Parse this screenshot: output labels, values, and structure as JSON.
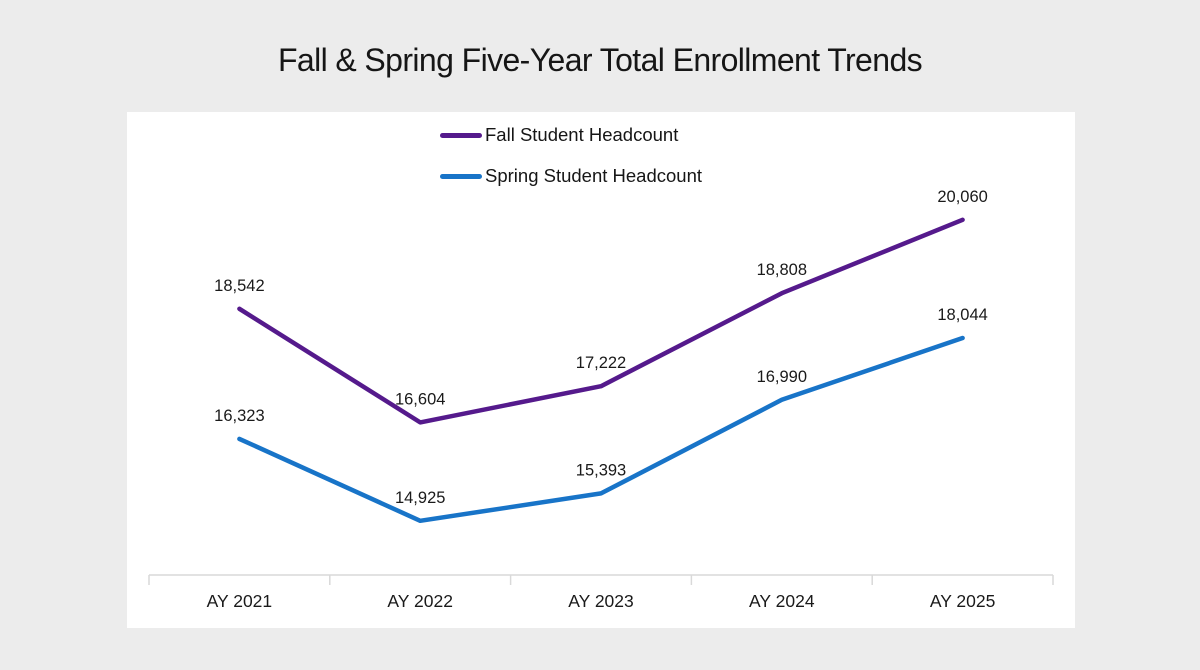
{
  "page": {
    "background_color": "#ececec",
    "panel_color": "#ffffff"
  },
  "chart_data": {
    "type": "line",
    "title": "Fall & Spring Five-Year Total Enrollment Trends",
    "categories": [
      "AY 2021",
      "AY 2022",
      "AY 2023",
      "AY 2024",
      "AY 2025"
    ],
    "series": [
      {
        "name": "Fall Student Headcount",
        "color": "#551a8c",
        "values": [
          18542,
          16604,
          17222,
          18808,
          20060
        ],
        "labels": [
          "18,542",
          "16,604",
          "17,222",
          "18,808",
          "20,060"
        ]
      },
      {
        "name": "Spring Student Headcount",
        "color": "#1874c8",
        "values": [
          16323,
          14925,
          15393,
          16990,
          18044
        ],
        "labels": [
          "16,323",
          "14,925",
          "15,393",
          "16,990",
          "18,044"
        ]
      }
    ],
    "ylim": [
      14000,
      21900
    ],
    "grid": false,
    "y_axis_visible": false,
    "legend_position": "top-center",
    "data_labels": "above",
    "axis_color": "#d9d9d9",
    "text_color": "#1a1a1a"
  }
}
